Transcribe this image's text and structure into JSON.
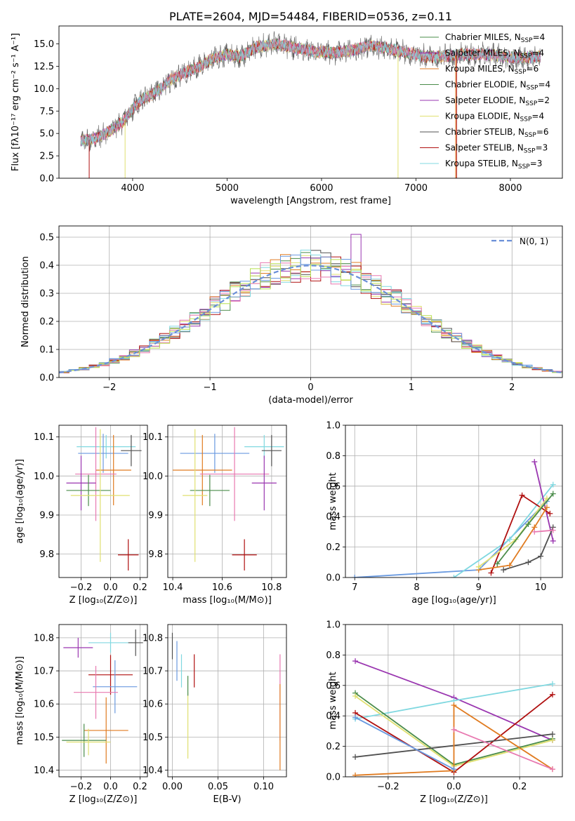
{
  "colors": {
    "series": [
      "#7f7f7f",
      "#d1d1d1",
      "#e07b20",
      "#4a8c4a",
      "#9a36b0",
      "#e0e070",
      "#505050",
      "#b01010",
      "#80d8e0",
      "#e878b0",
      "#6a9ae0",
      "#b8e050",
      "#202020",
      "#d02020"
    ],
    "grid": "#b0b0b0",
    "gauss": "#6a8fd8"
  },
  "chart_data": [
    {
      "id": "spectrum",
      "type": "line",
      "title": "PLATE=2604, MJD=54484, FIBERID=0536, z=0.11",
      "xlabel": "wavelength [Angstrom, rest frame]",
      "ylabel": "Flux [fλ10⁻¹⁷ erg cm⁻² s⁻¹ A⁻¹]",
      "xlim": [
        3220,
        8550
      ],
      "ylim": [
        0,
        17
      ],
      "xticks": [
        "4000",
        "5000",
        "6000",
        "7000",
        "8000"
      ],
      "yticks": [
        "0.0",
        "2.5",
        "5.0",
        "7.5",
        "10.0",
        "12.5",
        "15.0"
      ],
      "continuum": [
        [
          3450,
          4.2
        ],
        [
          3600,
          4.4
        ],
        [
          3750,
          5.2
        ],
        [
          3900,
          6.3
        ],
        [
          4000,
          7.8
        ],
        [
          4100,
          8.8
        ],
        [
          4200,
          9.3
        ],
        [
          4300,
          10.0
        ],
        [
          4400,
          11.0
        ],
        [
          4550,
          11.8
        ],
        [
          4700,
          12.4
        ],
        [
          4850,
          13.4
        ],
        [
          5000,
          13.8
        ],
        [
          5150,
          13.6
        ],
        [
          5300,
          14.6
        ],
        [
          5500,
          15.0
        ],
        [
          5700,
          14.6
        ],
        [
          5900,
          14.2
        ],
        [
          6100,
          14.0
        ],
        [
          6300,
          14.2
        ],
        [
          6500,
          14.8
        ],
        [
          6700,
          14.5
        ],
        [
          6900,
          14.0
        ],
        [
          7100,
          13.6
        ],
        [
          7300,
          13.6
        ],
        [
          7500,
          13.8
        ],
        [
          7700,
          13.9
        ],
        [
          7900,
          13.6
        ],
        [
          8100,
          13.4
        ],
        [
          8300,
          13.6
        ]
      ],
      "legend": [
        {
          "label": "Chabrier MILES, Nₛₛₚ=4",
          "sub": "Chabrier MILES, N",
          "ssp": "4",
          "color": "#4a8c4a"
        },
        {
          "label": "Salpeter MILES",
          "sub": "Salpeter MILES, N",
          "ssp": "4",
          "color": "#9a36b0"
        },
        {
          "label": "Kroupa MILES",
          "sub": "Kroupa MILES, N",
          "ssp": "6",
          "color": "#e07b20"
        },
        {
          "label": "Chabrier ELODIE",
          "sub": "Chabrier ELODIE, N",
          "ssp": "4",
          "color": "#4a8c4a"
        },
        {
          "label": "Salpeter ELODIE",
          "sub": "Salpeter ELODIE, N",
          "ssp": "2",
          "color": "#9a36b0"
        },
        {
          "label": "Kroupa ELODIE",
          "sub": "Kroupa ELODIE, N",
          "ssp": "4",
          "color": "#e0e070"
        },
        {
          "label": "Chabrier STELIB",
          "sub": "Chabrier STELIB, N",
          "ssp": "6",
          "color": "#505050"
        },
        {
          "label": "Salpeter STELIB",
          "sub": "Salpeter STELIB, N",
          "ssp": "3",
          "color": "#b01010"
        },
        {
          "label": "Kroupa STELIB",
          "sub": "Kroupa STELIB, N",
          "ssp": "3",
          "color": "#80d8e0"
        }
      ]
    },
    {
      "id": "residuals",
      "type": "histogram",
      "xlabel": "(data-model)/error",
      "ylabel": "Normed distribution",
      "xlim": [
        -2.5,
        2.5
      ],
      "ylim": [
        0,
        0.54
      ],
      "xticks": [
        "−2",
        "−1",
        "0",
        "1",
        "2"
      ],
      "yticks": [
        "0.0",
        "0.1",
        "0.2",
        "0.3",
        "0.4",
        "0.5"
      ],
      "legend": "N(0, 1)",
      "bin_width": 0.1
    },
    {
      "id": "age-vs-Z",
      "type": "errorbar",
      "xlabel": "Z [log₁₀(Z/Z⊙)]",
      "ylabel": "age  [log₁₀(age/yr)]",
      "xlim": [
        -0.35,
        0.25
      ],
      "ylim": [
        9.74,
        10.13
      ],
      "xticks": [
        "−0.2",
        "0.0",
        "0.2"
      ],
      "yticks": [
        "9.8",
        "9.9",
        "10.0",
        "10.1"
      ],
      "points": [
        {
          "x": -0.03,
          "y": 10.075,
          "xerr": 0.2,
          "yerr": 0.03,
          "color": "#80d8e0"
        },
        {
          "x": 0.14,
          "y": 10.065,
          "xerr": 0.07,
          "yerr": 0.04,
          "color": "#505050"
        },
        {
          "x": -0.05,
          "y": 10.058,
          "xerr": 0.17,
          "yerr": 0.05,
          "color": "#6a9ae0"
        },
        {
          "x": 0.02,
          "y": 10.015,
          "xerr": 0.12,
          "yerr": 0.09,
          "color": "#e07b20"
        },
        {
          "x": -0.1,
          "y": 10.005,
          "xerr": 0.14,
          "yerr": 0.12,
          "color": "#e878b0"
        },
        {
          "x": -0.2,
          "y": 9.982,
          "xerr": 0.1,
          "yerr": 0.07,
          "color": "#9a36b0"
        },
        {
          "x": -0.15,
          "y": 9.963,
          "xerr": 0.15,
          "yerr": 0.04,
          "color": "#4a8c4a"
        },
        {
          "x": -0.07,
          "y": 9.95,
          "xerr": 0.2,
          "yerr": 0.17,
          "color": "#e0e070"
        },
        {
          "x": 0.12,
          "y": 9.798,
          "xerr": 0.07,
          "yerr": 0.04,
          "color": "#b01010"
        }
      ]
    },
    {
      "id": "age-vs-mass",
      "type": "errorbar",
      "xlabel": "mass [log₁₀(M/M⊙)]",
      "ylabel": "",
      "xlim": [
        10.38,
        10.86
      ],
      "ylim": [
        9.74,
        10.13
      ],
      "xticks": [
        "10.4",
        "10.6",
        "10.8"
      ],
      "yticks": [
        "9.8",
        "9.9",
        "10.0",
        "10.1"
      ],
      "points": [
        {
          "x": 10.77,
          "y": 10.075,
          "xerr": 0.08,
          "yerr": 0.03,
          "color": "#80d8e0"
        },
        {
          "x": 10.8,
          "y": 10.065,
          "xerr": 0.04,
          "yerr": 0.04,
          "color": "#505050"
        },
        {
          "x": 10.57,
          "y": 10.058,
          "xerr": 0.14,
          "yerr": 0.05,
          "color": "#6a9ae0"
        },
        {
          "x": 10.52,
          "y": 10.015,
          "xerr": 0.12,
          "yerr": 0.09,
          "color": "#e07b20"
        },
        {
          "x": 10.65,
          "y": 10.005,
          "xerr": 0.14,
          "yerr": 0.12,
          "color": "#e878b0"
        },
        {
          "x": 10.77,
          "y": 9.982,
          "xerr": 0.05,
          "yerr": 0.07,
          "color": "#9a36b0"
        },
        {
          "x": 10.55,
          "y": 9.963,
          "xerr": 0.08,
          "yerr": 0.04,
          "color": "#4a8c4a"
        },
        {
          "x": 10.49,
          "y": 9.95,
          "xerr": 0.05,
          "yerr": 0.17,
          "color": "#e0e070"
        },
        {
          "x": 10.69,
          "y": 9.798,
          "xerr": 0.05,
          "yerr": 0.04,
          "color": "#b01010"
        }
      ]
    },
    {
      "id": "weight-vs-age",
      "type": "line",
      "xlabel": "age  [log₁₀(age/yr)]",
      "ylabel": "mass weight",
      "xlim": [
        6.85,
        10.35
      ],
      "ylim": [
        0,
        1.0
      ],
      "xticks": [
        "7",
        "8",
        "9",
        "10"
      ],
      "yticks": [
        "0.0",
        "0.2",
        "0.4",
        "0.6",
        "0.8",
        "1.0"
      ],
      "series": [
        {
          "color": "#6a9ae0",
          "points": [
            [
              7.0,
              0.0
            ],
            [
              9.0,
              0.05
            ],
            [
              10.1,
              0.5
            ]
          ]
        },
        {
          "color": "#80d8e0",
          "points": [
            [
              8.6,
              0.0
            ],
            [
              9.5,
              0.25
            ],
            [
              10.2,
              0.61
            ]
          ]
        },
        {
          "color": "#9a36b0",
          "points": [
            [
              9.9,
              0.76
            ],
            [
              10.2,
              0.24
            ]
          ]
        },
        {
          "color": "#b01010",
          "points": [
            [
              9.2,
              0.03
            ],
            [
              9.7,
              0.54
            ],
            [
              10.15,
              0.42
            ]
          ]
        },
        {
          "color": "#505050",
          "points": [
            [
              9.4,
              0.05
            ],
            [
              9.8,
              0.1
            ],
            [
              10.0,
              0.14
            ],
            [
              10.2,
              0.33
            ]
          ]
        },
        {
          "color": "#e07b20",
          "points": [
            [
              9.0,
              0.05
            ],
            [
              9.5,
              0.08
            ],
            [
              9.9,
              0.33
            ],
            [
              10.1,
              0.46
            ]
          ]
        },
        {
          "color": "#e0e070",
          "points": [
            [
              9.0,
              0.07
            ],
            [
              9.6,
              0.25
            ],
            [
              10.1,
              0.52
            ]
          ]
        },
        {
          "color": "#4a8c4a",
          "points": [
            [
              9.3,
              0.09
            ],
            [
              9.8,
              0.35
            ],
            [
              10.2,
              0.55
            ]
          ]
        },
        {
          "color": "#e878b0",
          "points": [
            [
              9.9,
              0.3
            ],
            [
              10.2,
              0.31
            ]
          ]
        }
      ]
    },
    {
      "id": "mass-vs-Z",
      "type": "errorbar",
      "xlabel": "Z [log₁₀(Z/Z⊙)]",
      "ylabel": "mass [log₁₀(M/M⊙)]",
      "xlim": [
        -0.35,
        0.25
      ],
      "ylim": [
        10.38,
        10.84
      ],
      "xticks": [
        "−0.2",
        "0.0",
        "0.2"
      ],
      "yticks": [
        "10.4",
        "10.5",
        "10.6",
        "10.7",
        "10.8"
      ],
      "points": [
        {
          "x": 0.0,
          "y": 10.785,
          "xerr": 0.15,
          "yerr": 0.03,
          "color": "#80d8e0"
        },
        {
          "x": 0.17,
          "y": 10.785,
          "xerr": 0.05,
          "yerr": 0.04,
          "color": "#505050"
        },
        {
          "x": -0.22,
          "y": 10.77,
          "xerr": 0.1,
          "yerr": 0.03,
          "color": "#9a36b0"
        },
        {
          "x": 0.0,
          "y": 10.688,
          "xerr": 0.15,
          "yerr": 0.06,
          "color": "#b01010"
        },
        {
          "x": 0.03,
          "y": 10.652,
          "xerr": 0.15,
          "yerr": 0.08,
          "color": "#6a9ae0"
        },
        {
          "x": -0.1,
          "y": 10.635,
          "xerr": 0.15,
          "yerr": 0.08,
          "color": "#e878b0"
        },
        {
          "x": -0.03,
          "y": 10.52,
          "xerr": 0.15,
          "yerr": 0.1,
          "color": "#e07b20"
        },
        {
          "x": -0.18,
          "y": 10.49,
          "xerr": 0.15,
          "yerr": 0.05,
          "color": "#4a8c4a"
        },
        {
          "x": -0.15,
          "y": 10.485,
          "xerr": 0.15,
          "yerr": 0.04,
          "color": "#e0e070"
        }
      ]
    },
    {
      "id": "mass-vs-ebv",
      "type": "errorbar",
      "xlabel": "E(B-V)",
      "ylabel": "",
      "xlim": [
        -0.005,
        0.125
      ],
      "ylim": [
        10.38,
        10.84
      ],
      "xticks": [
        "0.00",
        "0.05",
        "0.10"
      ],
      "yticks": [
        "10.4",
        "10.5",
        "10.6",
        "10.7",
        "10.8"
      ],
      "points": [
        {
          "x": 0.0,
          "y": 10.775,
          "xerr": 0,
          "yerr": 0.04,
          "color": "#505050"
        },
        {
          "x": 0.005,
          "y": 10.73,
          "xerr": 0,
          "yerr": 0.06,
          "color": "#6a9ae0"
        },
        {
          "x": 0.01,
          "y": 10.7,
          "xerr": 0,
          "yerr": 0.05,
          "color": "#80d8e0"
        },
        {
          "x": 0.017,
          "y": 10.535,
          "xerr": 0,
          "yerr": 0.1,
          "color": "#e0e070"
        },
        {
          "x": 0.017,
          "y": 10.655,
          "xerr": 0,
          "yerr": 0.03,
          "color": "#4a8c4a"
        },
        {
          "x": 0.024,
          "y": 10.7,
          "xerr": 0,
          "yerr": 0.05,
          "color": "#b01010"
        },
        {
          "x": 0.118,
          "y": 10.62,
          "xerr": 0,
          "yerr": 0.13,
          "color": "#e878b0"
        },
        {
          "x": 0.118,
          "y": 10.53,
          "xerr": 0,
          "yerr": 0.13,
          "color": "#e07b20"
        }
      ]
    },
    {
      "id": "weight-vs-Z",
      "type": "line",
      "xlabel": "Z [log₁₀(Z/Z⊙)]",
      "ylabel": "mass weight",
      "xlim": [
        -0.33,
        0.33
      ],
      "ylim": [
        0,
        1.0
      ],
      "xticks": [
        "−0.2",
        "0.0",
        "0.2"
      ],
      "yticks": [
        "0.0",
        "0.2",
        "0.4",
        "0.6",
        "0.8",
        "1.0"
      ],
      "series": [
        {
          "color": "#9a36b0",
          "points": [
            [
              -0.3,
              0.76
            ],
            [
              0.0,
              0.52
            ],
            [
              0.3,
              0.24
            ]
          ]
        },
        {
          "color": "#80d8e0",
          "points": [
            [
              -0.3,
              0.38
            ],
            [
              0.0,
              0.5
            ],
            [
              0.3,
              0.61
            ]
          ]
        },
        {
          "color": "#4a8c4a",
          "points": [
            [
              -0.3,
              0.55
            ],
            [
              0.0,
              0.08
            ],
            [
              0.3,
              0.25
            ]
          ]
        },
        {
          "color": "#e0e070",
          "points": [
            [
              -0.3,
              0.53
            ],
            [
              0.0,
              0.07
            ],
            [
              0.3,
              0.24
            ]
          ]
        },
        {
          "color": "#b01010",
          "points": [
            [
              -0.3,
              0.42
            ],
            [
              0.0,
              0.03
            ],
            [
              0.3,
              0.54
            ]
          ]
        },
        {
          "color": "#505050",
          "points": [
            [
              -0.3,
              0.13
            ],
            [
              0.3,
              0.28
            ]
          ]
        },
        {
          "color": "#e07b20",
          "points": [
            [
              -0.3,
              0.01
            ],
            [
              0.0,
              0.04
            ],
            [
              0.0,
              0.47
            ],
            [
              0.3,
              0.05
            ]
          ]
        },
        {
          "color": "#6a9ae0",
          "points": [
            [
              -0.3,
              0.39
            ],
            [
              0.0,
              0.05
            ]
          ]
        },
        {
          "color": "#e878b0",
          "points": [
            [
              0.0,
              0.31
            ],
            [
              0.3,
              0.05
            ]
          ]
        }
      ]
    }
  ]
}
